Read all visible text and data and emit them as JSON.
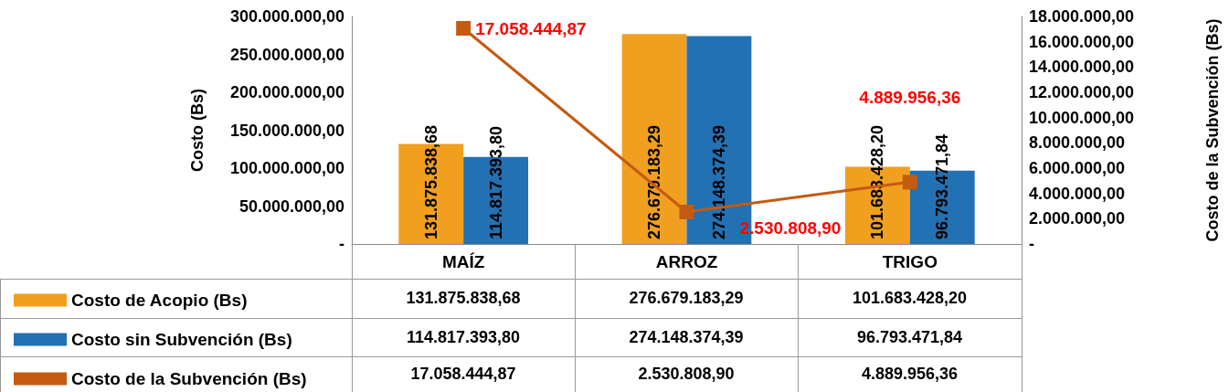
{
  "chart_data": {
    "type": "bar",
    "ylabel": "Costo (Bs)",
    "y2label": "Costo de la Subvención (Bs)",
    "categories": [
      "MAÍZ",
      "ARROZ",
      "TRIGO"
    ],
    "series": [
      {
        "name": "Costo de Acopio (Bs)",
        "color": "#f0a01e",
        "values": [
          131875838.68,
          276679183.29,
          101683428.2
        ],
        "value_labels": [
          "131.875.838,68",
          "276.679.183,29",
          "101.683.428,20"
        ]
      },
      {
        "name": "Costo sin Subvención (Bs)",
        "color": "#2271b3",
        "values": [
          114817393.8,
          274148374.39,
          96793471.84
        ],
        "value_labels": [
          "114.817.393,80",
          "274.148.374,39",
          "96.793.471,84"
        ]
      },
      {
        "name": "Costo de la Subvención (Bs)",
        "type": "line",
        "axis": "y2",
        "color": "#c55a11",
        "marker": "square",
        "values": [
          17058444.87,
          2530808.9,
          4889956.36
        ],
        "value_labels": [
          "17.058.444,87",
          "2.530.808,90",
          "4.889.956,36"
        ]
      }
    ],
    "ylim": [
      0,
      300000000
    ],
    "yticks": [
      {
        "value": 0,
        "label": "-"
      },
      {
        "value": 50000000,
        "label": "50.000.000,00"
      },
      {
        "value": 100000000,
        "label": "100.000.000,00"
      },
      {
        "value": 150000000,
        "label": "150.000.000,00"
      },
      {
        "value": 200000000,
        "label": "200.000.000,00"
      },
      {
        "value": 250000000,
        "label": "250.000.000,00"
      },
      {
        "value": 300000000,
        "label": "300.000.000,00"
      }
    ],
    "y2lim": [
      0,
      18000000
    ],
    "y2ticks": [
      {
        "value": 0,
        "label": "-"
      },
      {
        "value": 2000000,
        "label": "2.000.000,00"
      },
      {
        "value": 4000000,
        "label": "4.000.000,00"
      },
      {
        "value": 6000000,
        "label": "6.000.000,00"
      },
      {
        "value": 8000000,
        "label": "8.000.000,00"
      },
      {
        "value": 10000000,
        "label": "10.000.000,00"
      },
      {
        "value": 12000000,
        "label": "12.000.000,00"
      },
      {
        "value": 14000000,
        "label": "14.000.000,00"
      },
      {
        "value": 16000000,
        "label": "16.000.000,00"
      },
      {
        "value": 18000000,
        "label": "18.000.000,00"
      }
    ],
    "grid": false,
    "legend": "bottom left"
  }
}
